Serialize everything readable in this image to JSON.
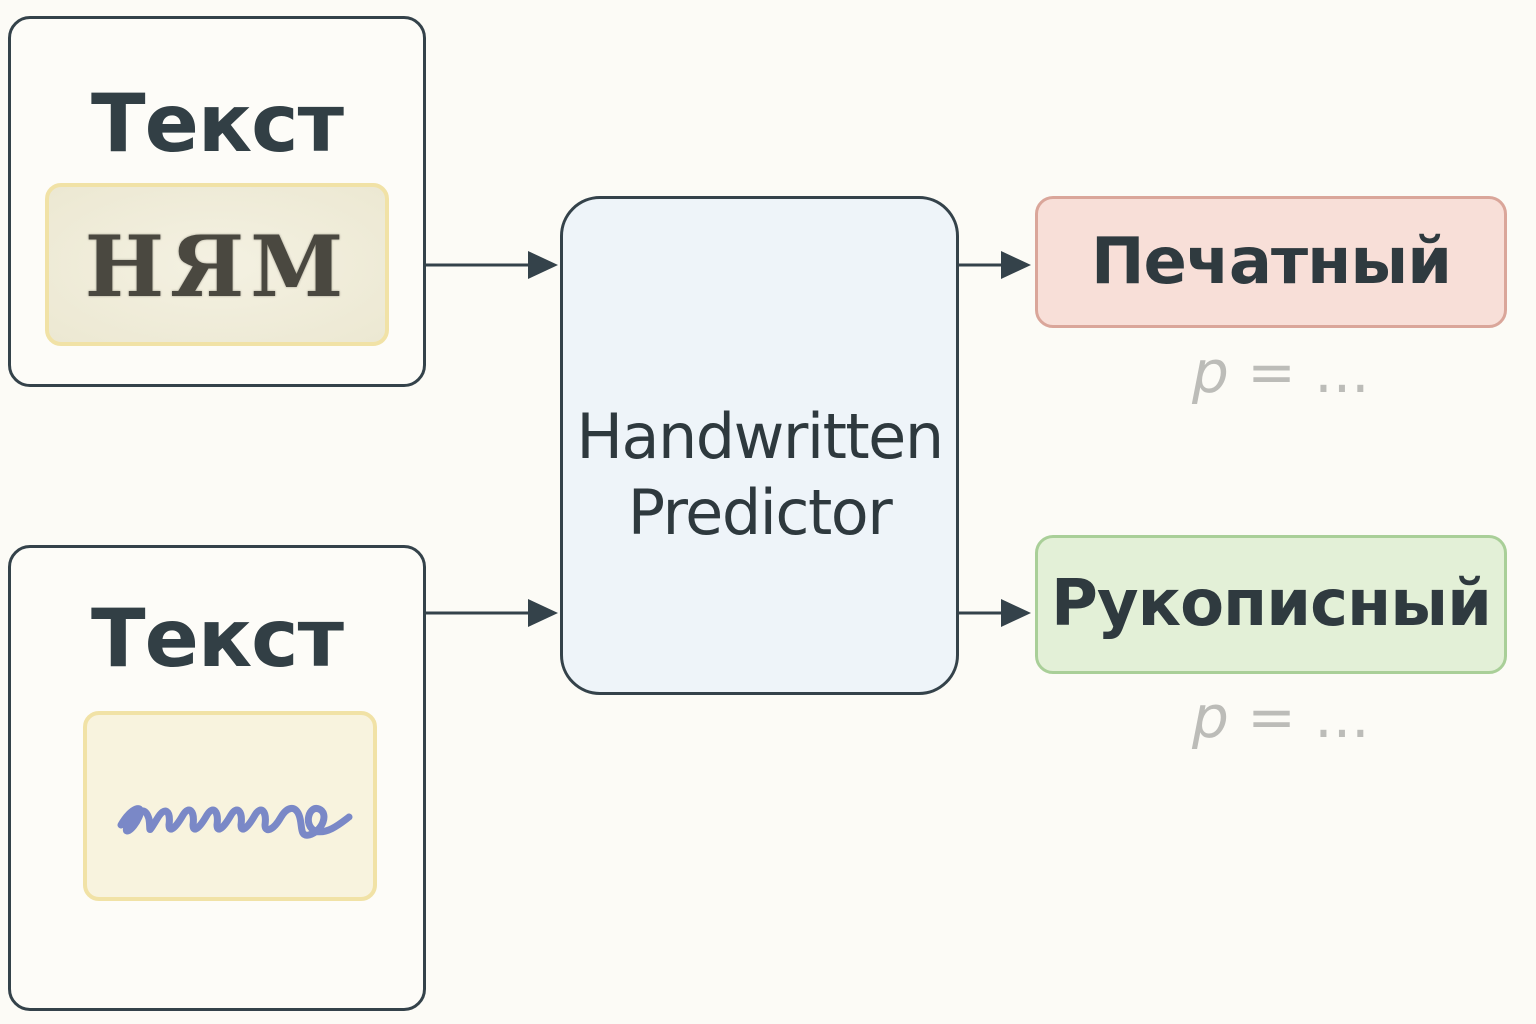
{
  "inputs": [
    {
      "title": "Текст",
      "sample_text": "НЯМ",
      "sample_kind": "printed"
    },
    {
      "title": "Текст",
      "sample_kind": "handwritten",
      "sample_text": "ешшшо"
    }
  ],
  "predictor": {
    "line1": "Handwritten",
    "line2": "Predictor"
  },
  "outputs": [
    {
      "label": "Печатный",
      "prob_symbol": "p",
      "prob_rest": " = ...",
      "fill": "#f8dfd8",
      "border": "#daa69a"
    },
    {
      "label": "Рукописный",
      "prob_symbol": "p",
      "prob_rest": " = ...",
      "fill": "#e3f0d7",
      "border": "#a9cf98"
    }
  ],
  "colors": {
    "stroke": "#34424a",
    "predictor_fill": "#eef4f9",
    "handwriting_ink": "#6f7fc4"
  }
}
